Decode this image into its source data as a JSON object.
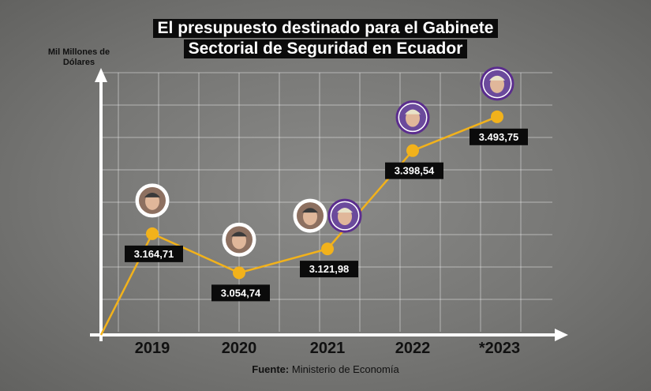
{
  "title_line1": "El presupuesto destinado para el Gabinete",
  "title_line2": "Sectorial de Seguridad en Ecuador",
  "source_label": "Fuente:",
  "source_value": "Ministerio de Economía",
  "colors": {
    "line": "#f2b21b",
    "label_bg": "#0b0b0b",
    "axis": "#ffffff",
    "avatar_border_2": "#5b2d8e"
  },
  "chart_data": {
    "type": "line",
    "title": "El presupuesto destinado para el Gabinete Sectorial de Seguridad en Ecuador",
    "ylabel": "Mil Millones de Dólares",
    "xlabel": "",
    "categories": [
      "2019",
      "2020",
      "2021",
      "2022",
      "*2023"
    ],
    "values": [
      3164.71,
      3054.74,
      3121.98,
      3398.54,
      3493.75
    ],
    "value_labels": [
      "3.164,71",
      "3.054,74",
      "3.121,98",
      "3.398,54",
      "3.493,75"
    ],
    "ylim": [
      2900,
      3600
    ],
    "grid": true,
    "avatars": [
      [
        "avatar-1"
      ],
      [
        "avatar-1"
      ],
      [
        "avatar-1",
        "avatar-2"
      ],
      [
        "avatar-2"
      ],
      [
        "avatar-2"
      ]
    ]
  }
}
